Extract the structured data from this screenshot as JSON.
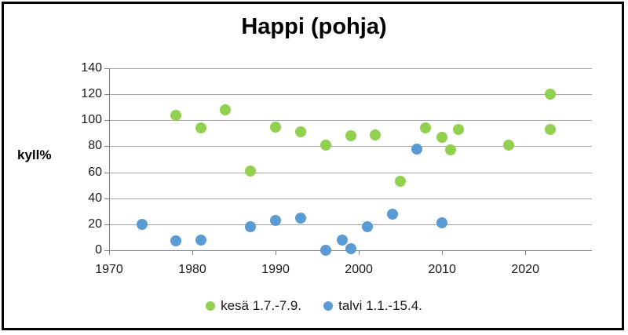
{
  "frame": {
    "border_color": "#000000",
    "background": "#ffffff",
    "gridline_color": "#a6a6a6",
    "axis_color": "#7f7f7f",
    "text_color": "#1a1a1a"
  },
  "chart_data": {
    "type": "scatter",
    "title": "Happi (pohja)",
    "ylabel": "kyll%",
    "xlabel": "",
    "xlim": [
      1970,
      2028
    ],
    "ylim": [
      0,
      140
    ],
    "x_ticks": [
      1970,
      1980,
      1990,
      2000,
      2010,
      2020
    ],
    "y_ticks": [
      0,
      20,
      40,
      60,
      80,
      100,
      120,
      140
    ],
    "grid": "horizontal",
    "legend_position": "bottom-center",
    "series": [
      {
        "name": "kesä 1.7.-7.9.",
        "color": "#92D050",
        "points": [
          [
            1978,
            104
          ],
          [
            1981,
            94
          ],
          [
            1984,
            108
          ],
          [
            1987,
            61
          ],
          [
            1990,
            95
          ],
          [
            1993,
            91
          ],
          [
            1996,
            81
          ],
          [
            1999,
            88
          ],
          [
            2002,
            89
          ],
          [
            2005,
            53
          ],
          [
            2008,
            94
          ],
          [
            2010,
            87
          ],
          [
            2011,
            77
          ],
          [
            2012,
            93
          ],
          [
            2018,
            81
          ],
          [
            2023,
            120
          ],
          [
            2023,
            93
          ]
        ]
      },
      {
        "name": "talvi 1.1.-15.4.",
        "color": "#5B9BD5",
        "points": [
          [
            1974,
            20
          ],
          [
            1978,
            7
          ],
          [
            1981,
            8
          ],
          [
            1987,
            18
          ],
          [
            1990,
            23
          ],
          [
            1993,
            25
          ],
          [
            1996,
            0
          ],
          [
            1998,
            8
          ],
          [
            1999,
            1
          ],
          [
            2001,
            18
          ],
          [
            2004,
            28
          ],
          [
            2007,
            78
          ],
          [
            2010,
            21
          ]
        ]
      }
    ]
  }
}
